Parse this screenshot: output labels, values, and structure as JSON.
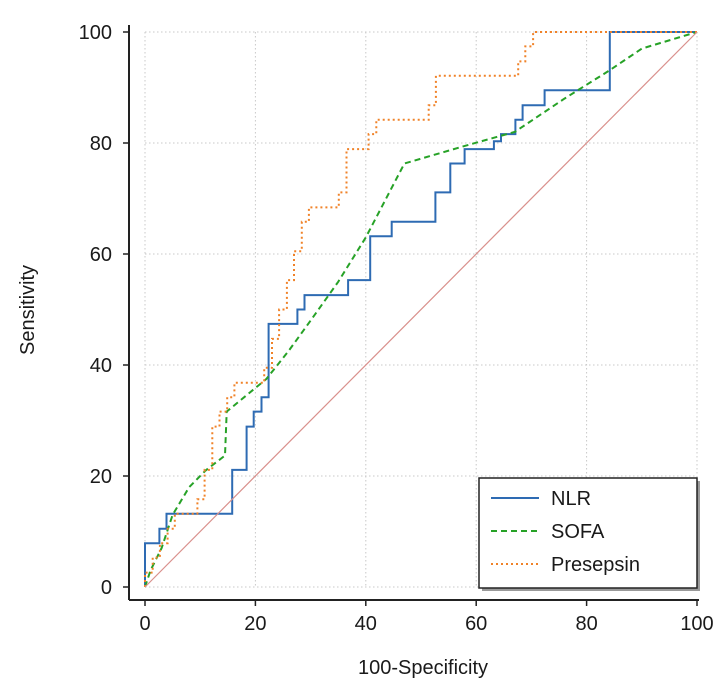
{
  "chart_data": {
    "type": "line",
    "title": "",
    "xlabel": "100-Specificity",
    "ylabel": "Sensitivity",
    "xlim": [
      0,
      100
    ],
    "ylim": [
      0,
      100
    ],
    "xticks": [
      0,
      20,
      40,
      60,
      80,
      100
    ],
    "yticks": [
      0,
      20,
      40,
      60,
      80,
      100
    ],
    "grid": true,
    "legend_position": "bottom-right",
    "series": [
      {
        "name": "NLR",
        "color": "#2e6bb3",
        "style": "solid",
        "x": [
          0,
          0,
          2.6,
          2.6,
          3.9,
          3.9,
          14.3,
          14.3,
          15.8,
          15.8,
          18.4,
          18.4,
          19.7,
          19.7,
          21.1,
          21.1,
          22.4,
          22.4,
          27.6,
          27.6,
          28.9,
          28.9,
          31.6,
          31.6,
          36.8,
          36.8,
          40.8,
          40.8,
          44.7,
          44.7,
          52.6,
          52.6,
          55.3,
          55.3,
          57.9,
          57.9,
          63.2,
          63.2,
          64.5,
          64.5,
          67.1,
          67.1,
          68.4,
          68.4,
          72.4,
          72.4,
          84.2,
          84.2,
          100
        ],
        "y": [
          0,
          7.9,
          7.9,
          10.5,
          10.5,
          13.2,
          13.2,
          13.2,
          13.2,
          21.1,
          21.1,
          28.9,
          28.9,
          31.6,
          31.6,
          34.2,
          34.2,
          47.4,
          47.4,
          50.0,
          50.0,
          52.6,
          52.6,
          52.6,
          52.6,
          55.3,
          55.3,
          63.2,
          63.2,
          65.8,
          65.8,
          71.1,
          71.1,
          76.3,
          76.3,
          78.9,
          78.9,
          80.3,
          80.3,
          81.6,
          81.6,
          84.2,
          84.2,
          86.8,
          86.8,
          89.5,
          89.5,
          100,
          100
        ]
      },
      {
        "name": "SOFA",
        "color": "#27a227",
        "style": "dashed",
        "x": [
          0,
          1,
          3,
          5,
          8,
          11,
          14.5,
          14.8,
          22,
          26,
          30,
          35,
          40,
          47,
          58,
          67,
          76,
          84,
          90,
          100
        ],
        "y": [
          0,
          3,
          7,
          13,
          18,
          21,
          23.7,
          31.6,
          37.5,
          42.5,
          48,
          55,
          63,
          76.3,
          79.5,
          82,
          88,
          93,
          97,
          100
        ]
      },
      {
        "name": "Presepsin",
        "color": "#f08228",
        "style": "dotted",
        "x": [
          0,
          0,
          1.4,
          1.4,
          2.7,
          2.7,
          4.1,
          4.1,
          5.4,
          5.4,
          9.5,
          9.5,
          10.8,
          10.8,
          12.2,
          12.2,
          13.5,
          13.5,
          14.9,
          14.9,
          16.2,
          16.2,
          17.6,
          17.6,
          21.6,
          21.6,
          23.0,
          23.0,
          24.3,
          24.3,
          25.7,
          25.7,
          27.0,
          27.0,
          28.4,
          28.4,
          29.7,
          29.7,
          31.1,
          31.1,
          35.1,
          35.1,
          36.5,
          36.5,
          40.5,
          40.5,
          41.9,
          41.9,
          44.6,
          44.6,
          51.4,
          51.4,
          52.7,
          52.7,
          67.6,
          67.6,
          68.9,
          68.9,
          70.3,
          70.3,
          71.6,
          71.6,
          100
        ],
        "y": [
          0,
          2.6,
          2.6,
          5.3,
          5.3,
          7.9,
          7.9,
          10.5,
          10.5,
          13.2,
          13.2,
          15.8,
          15.8,
          21.1,
          21.1,
          28.9,
          28.9,
          31.6,
          31.6,
          34.2,
          34.2,
          36.8,
          36.8,
          36.8,
          36.8,
          39.5,
          39.5,
          44.7,
          44.7,
          50.0,
          50.0,
          55.3,
          55.3,
          60.5,
          60.5,
          65.8,
          65.8,
          68.4,
          68.4,
          68.4,
          68.4,
          71.1,
          71.1,
          78.9,
          78.9,
          81.6,
          81.6,
          84.2,
          84.2,
          84.2,
          84.2,
          86.8,
          86.8,
          92.1,
          92.1,
          94.7,
          94.7,
          97.4,
          97.4,
          100,
          100,
          100,
          100
        ]
      },
      {
        "name": "",
        "color": "#d9908c",
        "style": "solid",
        "x": [
          0,
          100
        ],
        "y": [
          0,
          100
        ]
      }
    ]
  }
}
